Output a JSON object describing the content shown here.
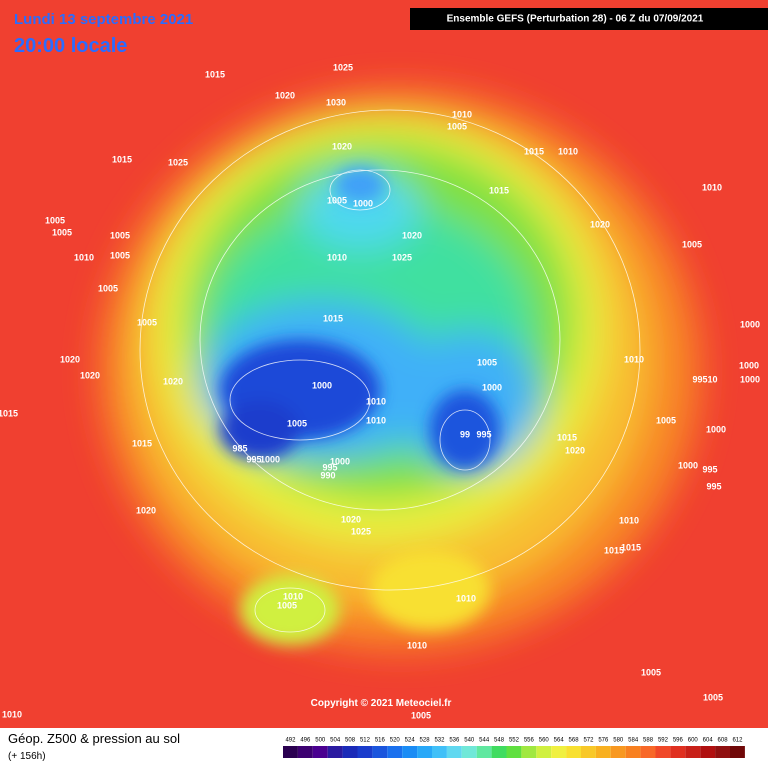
{
  "header": {
    "date": "Lundi 13 septembre 2021",
    "time": "20:00 locale",
    "run": "Ensemble GEFS  (Perturbation 28)  -  06 Z du 07/09/2021"
  },
  "footer": {
    "title": "Géop. Z500 & pression au sol",
    "lead": "(+ 156h)",
    "copyright": "Copyright © 2021 Meteociel.fr"
  },
  "isobar_labels": [
    "1015",
    "1025",
    "1020",
    "1030",
    "1010",
    "1005",
    "1015",
    "1025",
    "1020",
    "1015",
    "1010",
    "1010",
    "1005",
    "1000",
    "1015",
    "1005",
    "1005",
    "1005",
    "1005",
    "1010",
    "1010",
    "1025",
    "1020",
    "1020",
    "1005",
    "1005",
    "1005",
    "1015",
    "1000",
    "1020",
    "1010",
    "1005",
    "1020",
    "1020",
    "1000",
    "99510",
    "1000",
    "1000",
    "1000",
    "1010",
    "1010",
    "1005",
    "1015",
    "1015",
    "1020",
    "1005",
    "1000",
    "99",
    "995",
    "985",
    "995",
    "1000",
    "1000",
    "995",
    "990",
    "1000",
    "995",
    "995",
    "1020",
    "1020",
    "1025",
    "1010",
    "1015",
    "1015",
    "1010",
    "1005",
    "1010",
    "1010",
    "1005",
    "1005",
    "1010",
    "1005",
    "1015"
  ],
  "colorbar": {
    "levels": [
      492,
      496,
      500,
      504,
      508,
      512,
      516,
      520,
      524,
      528,
      532,
      536,
      540,
      544,
      548,
      552,
      556,
      560,
      564,
      568,
      572,
      576,
      580,
      584,
      588,
      592,
      596,
      600,
      604,
      608,
      612
    ],
    "colors": [
      "#2a0050",
      "#3c0070",
      "#4a0090",
      "#2a1aa0",
      "#1a2ab8",
      "#1a3ccc",
      "#1a55dd",
      "#1a70ee",
      "#1a8cf5",
      "#28a8f8",
      "#40c0f8",
      "#60d8f0",
      "#70e8d8",
      "#60e8a0",
      "#40dc60",
      "#60e040",
      "#a0e840",
      "#d0f040",
      "#f0f040",
      "#f8e030",
      "#f8c828",
      "#f8b020",
      "#f89820",
      "#f88020",
      "#f86828",
      "#f04828",
      "#e03020",
      "#c82018",
      "#b01010",
      "#901010",
      "#700808"
    ]
  }
}
